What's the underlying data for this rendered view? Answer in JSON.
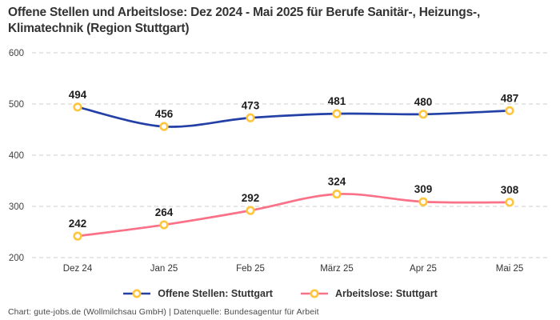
{
  "title": "Offene Stellen und Arbeitslose: Dez 2024 - Mai 2025 für Berufe Sanitär-, Heizungs-, Klimatechnik (Region Stuttgart)",
  "footer": "Chart: gute-jobs.de (Wollmilchsau GmbH) | Datenquelle: Bundesagentur für Arbeit",
  "colors": {
    "grid": "#cccccc",
    "axis_text": "#424242",
    "data_label": "#1d1d1d",
    "marker_fill": "#ffffff"
  },
  "chart_data": {
    "type": "line",
    "title": "Offene Stellen und Arbeitslose: Dez 2024 - Mai 2025 für Berufe Sanitär-, Heizungs-, Klimatechnik (Region Stuttgart)",
    "categories": [
      "Dez 24",
      "Jan 25",
      "Feb 25",
      "März 25",
      "Apr 25",
      "Mai 25"
    ],
    "series": [
      {
        "name": "Offene Stellen: Stuttgart",
        "values": [
          494,
          456,
          473,
          481,
          480,
          487
        ],
        "color": "#2340A6"
      },
      {
        "name": "Arbeitslose: Stuttgart",
        "values": [
          242,
          264,
          292,
          324,
          309,
          308
        ],
        "color": "#FA7188"
      }
    ],
    "marker_color": "#FFC53D",
    "ylim": [
      200,
      600
    ],
    "yticks": [
      200,
      300,
      400,
      500,
      600
    ],
    "xlabel": "",
    "ylabel": "",
    "grid": "horizontal-dashed",
    "legend_position": "bottom",
    "smooth": true,
    "data_labels": true
  }
}
